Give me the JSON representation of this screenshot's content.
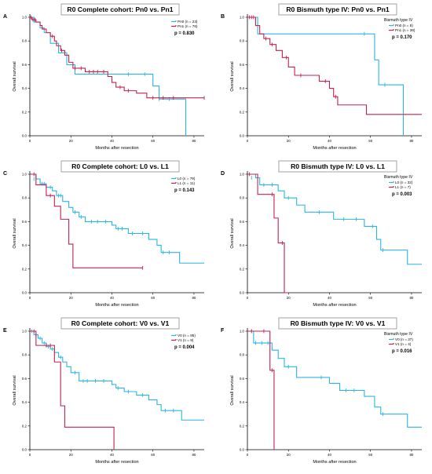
{
  "colors": {
    "group1": "#29b6e6",
    "group2": "#c4214e"
  },
  "chart_data": [
    {
      "letter": "A",
      "type": "line",
      "title": "R0 Complete cohort: Pn0 vs. Pn1",
      "xlabel": "Months after resection",
      "ylabel": "Overall survival",
      "xlim": [
        0,
        85
      ],
      "ylim": [
        0,
        1
      ],
      "xticks": [
        "0",
        "20",
        "40",
        "60",
        "80"
      ],
      "yticks": [
        "0.0",
        "0.2",
        "0.4",
        "0.6",
        "0.8",
        "1.0"
      ],
      "legend_title": "",
      "p_text": "p = 0.830",
      "series": [
        {
          "name": "Pn0 (n = 23)",
          "x": [
            0,
            2,
            5,
            7,
            10,
            14,
            18,
            22,
            40,
            56,
            60,
            63,
            76
          ],
          "y": [
            1.0,
            0.96,
            0.91,
            0.87,
            0.78,
            0.7,
            0.6,
            0.52,
            0.52,
            0.52,
            0.42,
            0.31,
            0.0
          ],
          "censored": [
            [
              48,
              0.52
            ],
            [
              56,
              0.52
            ],
            [
              63,
              0.31
            ],
            [
              68,
              0.31
            ]
          ]
        },
        {
          "name": "Pn1 (n = 76)",
          "x": [
            0,
            1,
            3,
            5,
            6,
            8,
            10,
            12,
            13,
            15,
            17,
            19,
            21,
            27,
            38,
            40,
            42,
            46,
            52,
            57,
            85
          ],
          "y": [
            1.0,
            0.98,
            0.96,
            0.93,
            0.9,
            0.87,
            0.84,
            0.8,
            0.76,
            0.72,
            0.68,
            0.62,
            0.57,
            0.54,
            0.5,
            0.45,
            0.41,
            0.38,
            0.36,
            0.32,
            0.32
          ],
          "censored": [
            [
              0.5,
              1.0
            ],
            [
              1.5,
              0.98
            ],
            [
              2.5,
              0.98
            ],
            [
              11,
              0.84
            ],
            [
              15.5,
              0.72
            ],
            [
              22,
              0.57
            ],
            [
              25,
              0.57
            ],
            [
              29,
              0.54
            ],
            [
              31,
              0.54
            ],
            [
              33,
              0.54
            ],
            [
              36,
              0.54
            ],
            [
              44,
              0.41
            ],
            [
              48,
              0.38
            ],
            [
              60,
              0.32
            ],
            [
              65,
              0.32
            ],
            [
              70,
              0.32
            ],
            [
              85,
              0.32
            ]
          ]
        }
      ]
    },
    {
      "letter": "B",
      "type": "line",
      "title": "R0 Bismuth type IV: Pn0 vs. Pn1",
      "xlabel": "Months after resection",
      "ylabel": "Overall survival",
      "xlim": [
        0,
        85
      ],
      "ylim": [
        0,
        1
      ],
      "xticks": [
        "0",
        "20",
        "40",
        "60",
        "80"
      ],
      "yticks": [
        "0.0",
        "0.2",
        "0.4",
        "0.6",
        "0.8",
        "1.0"
      ],
      "legend_title": "Bismuth type IV",
      "p_text": "p = 0.170",
      "series": [
        {
          "name": "Pn0 (n = 8)",
          "x": [
            0,
            5,
            62,
            64,
            76
          ],
          "y": [
            1.0,
            0.86,
            0.64,
            0.43,
            0.0
          ],
          "censored": [
            [
              57,
              0.86
            ],
            [
              67,
              0.43
            ]
          ]
        },
        {
          "name": "Pn1 (n = 36)",
          "x": [
            0,
            4,
            6,
            8,
            11,
            14,
            17,
            20,
            23,
            35,
            40,
            42,
            44,
            58,
            85
          ],
          "y": [
            1.0,
            0.93,
            0.86,
            0.82,
            0.77,
            0.72,
            0.66,
            0.58,
            0.51,
            0.46,
            0.4,
            0.33,
            0.26,
            0.18,
            0.18
          ],
          "censored": [
            [
              1,
              1.0
            ],
            [
              2,
              1.0
            ],
            [
              3,
              1.0
            ],
            [
              9,
              0.82
            ],
            [
              12,
              0.77
            ],
            [
              19,
              0.66
            ],
            [
              26,
              0.51
            ],
            [
              38,
              0.46
            ],
            [
              43,
              0.33
            ]
          ]
        }
      ]
    },
    {
      "letter": "C",
      "type": "line",
      "title": "R0 Complete cohort: L0 vs. L1",
      "xlabel": "Months after resection",
      "ylabel": "Overall survival",
      "xlim": [
        0,
        85
      ],
      "ylim": [
        0,
        1
      ],
      "xticks": [
        "0",
        "20",
        "40",
        "60",
        "80"
      ],
      "yticks": [
        "0.0",
        "0.2",
        "0.4",
        "0.6",
        "0.8",
        "1.0"
      ],
      "legend_title": "",
      "p_text": "p = 0.143",
      "series": [
        {
          "name": "L0 (n = 79)",
          "x": [
            0,
            3,
            5,
            8,
            11,
            13,
            16,
            19,
            21,
            24,
            27,
            40,
            42,
            48,
            52,
            58,
            62,
            64,
            73,
            85
          ],
          "y": [
            1.0,
            0.96,
            0.92,
            0.89,
            0.86,
            0.82,
            0.77,
            0.72,
            0.68,
            0.64,
            0.6,
            0.57,
            0.54,
            0.5,
            0.5,
            0.45,
            0.4,
            0.34,
            0.25,
            0.25
          ],
          "censored": [
            [
              2,
              0.96
            ],
            [
              6,
              0.92
            ],
            [
              7,
              0.92
            ],
            [
              10,
              0.89
            ],
            [
              14,
              0.82
            ],
            [
              15,
              0.82
            ],
            [
              22,
              0.68
            ],
            [
              25,
              0.64
            ],
            [
              30,
              0.6
            ],
            [
              33,
              0.6
            ],
            [
              37,
              0.6
            ],
            [
              43,
              0.54
            ],
            [
              45,
              0.54
            ],
            [
              50,
              0.5
            ],
            [
              55,
              0.5
            ],
            [
              65,
              0.34
            ],
            [
              68,
              0.34
            ]
          ]
        },
        {
          "name": "L1 (n = 11)",
          "x": [
            0,
            3,
            8,
            12,
            15,
            19,
            21,
            55
          ],
          "y": [
            1.0,
            0.91,
            0.82,
            0.73,
            0.62,
            0.41,
            0.21,
            0.21
          ],
          "censored": [
            [
              2,
              1.0
            ],
            [
              10,
              0.82
            ],
            [
              55,
              0.21
            ]
          ]
        }
      ]
    },
    {
      "letter": "D",
      "type": "line",
      "title": "R0 Bismuth type IV: L0 vs. L1",
      "xlabel": "Months after resection",
      "ylabel": "Overall survival",
      "xlim": [
        0,
        85
      ],
      "ylim": [
        0,
        1
      ],
      "xticks": [
        "0",
        "20",
        "40",
        "60",
        "80"
      ],
      "yticks": [
        "0.0",
        "0.2",
        "0.4",
        "0.6",
        "0.8",
        "1.0"
      ],
      "legend_title": "Bismuth type IV",
      "p_text": "p = 0.003",
      "series": [
        {
          "name": "L0 (n = 32)",
          "x": [
            0,
            4,
            6,
            15,
            18,
            24,
            28,
            42,
            57,
            63,
            65,
            78,
            85
          ],
          "y": [
            1.0,
            0.97,
            0.91,
            0.86,
            0.8,
            0.74,
            0.68,
            0.62,
            0.56,
            0.45,
            0.36,
            0.24,
            0.24
          ],
          "censored": [
            [
              2,
              0.97
            ],
            [
              8,
              0.91
            ],
            [
              12,
              0.91
            ],
            [
              20,
              0.8
            ],
            [
              35,
              0.68
            ],
            [
              47,
              0.62
            ],
            [
              53,
              0.62
            ],
            [
              61,
              0.56
            ],
            [
              66,
              0.36
            ]
          ]
        },
        {
          "name": "L1 (n = 7)",
          "x": [
            0,
            5,
            13,
            15,
            18,
            20
          ],
          "y": [
            1.0,
            0.83,
            0.63,
            0.42,
            0.0,
            0.0
          ],
          "censored": [
            [
              1,
              1.0
            ],
            [
              12,
              0.83
            ],
            [
              17,
              0.42
            ]
          ]
        }
      ]
    },
    {
      "letter": "E",
      "type": "line",
      "title": "R0 Complete cohort: V0 vs. V1",
      "xlabel": "Months after resection",
      "ylabel": "Overall survival",
      "xlim": [
        0,
        85
      ],
      "ylim": [
        0,
        1
      ],
      "xticks": [
        "0",
        "20",
        "40",
        "60",
        "80"
      ],
      "yticks": [
        "0.0",
        "0.2",
        "0.4",
        "0.6",
        "0.8",
        "1.0"
      ],
      "legend_title": "",
      "p_text": "p = 0.004",
      "series": [
        {
          "name": "V0 (n = 85)",
          "x": [
            0,
            2,
            4,
            6,
            8,
            10,
            12,
            14,
            16,
            18,
            20,
            24,
            40,
            42,
            46,
            52,
            58,
            62,
            64,
            74,
            85
          ],
          "y": [
            1.0,
            0.97,
            0.94,
            0.9,
            0.87,
            0.85,
            0.82,
            0.78,
            0.74,
            0.7,
            0.65,
            0.58,
            0.55,
            0.52,
            0.49,
            0.46,
            0.42,
            0.38,
            0.33,
            0.25,
            0.25
          ],
          "censored": [
            [
              1,
              1.0
            ],
            [
              3,
              0.97
            ],
            [
              5,
              0.94
            ],
            [
              7,
              0.9
            ],
            [
              9,
              0.87
            ],
            [
              11,
              0.85
            ],
            [
              15,
              0.78
            ],
            [
              22,
              0.65
            ],
            [
              26,
              0.58
            ],
            [
              28,
              0.58
            ],
            [
              32,
              0.58
            ],
            [
              36,
              0.58
            ],
            [
              43,
              0.52
            ],
            [
              48,
              0.49
            ],
            [
              55,
              0.46
            ],
            [
              66,
              0.33
            ],
            [
              70,
              0.33
            ]
          ]
        },
        {
          "name": "V1 (n = 9)",
          "x": [
            0,
            3,
            12,
            15,
            17,
            41
          ],
          "y": [
            1.0,
            0.88,
            0.74,
            0.37,
            0.19,
            0.0
          ],
          "censored": [
            [
              2,
              1.0
            ],
            [
              8,
              0.88
            ],
            [
              10,
              0.88
            ]
          ]
        }
      ]
    },
    {
      "letter": "F",
      "type": "line",
      "title": "R0 Bismuth type IV: V0 vs. V1",
      "xlabel": "Months after resection",
      "ylabel": "Overall survival",
      "xlim": [
        0,
        85
      ],
      "ylim": [
        0,
        1
      ],
      "xticks": [
        "0",
        "20",
        "40",
        "60",
        "80"
      ],
      "yticks": [
        "0.0",
        "0.2",
        "0.4",
        "0.6",
        "0.8",
        "1.0"
      ],
      "legend_title": "Bismuth type IV",
      "p_text": "p = 0.016",
      "series": [
        {
          "name": "V0 (n = 37)",
          "x": [
            0,
            3,
            12,
            15,
            18,
            24,
            40,
            45,
            57,
            62,
            65,
            78,
            85
          ],
          "y": [
            1.0,
            0.9,
            0.84,
            0.77,
            0.7,
            0.61,
            0.56,
            0.5,
            0.45,
            0.36,
            0.3,
            0.19,
            0.19
          ],
          "censored": [
            [
              2,
              1.0
            ],
            [
              4,
              0.9
            ],
            [
              7,
              0.9
            ],
            [
              10,
              0.9
            ],
            [
              20,
              0.7
            ],
            [
              36,
              0.61
            ],
            [
              48,
              0.5
            ],
            [
              52,
              0.5
            ],
            [
              66,
              0.3
            ]
          ]
        },
        {
          "name": "V1 (n = 4)",
          "x": [
            0,
            11,
            13
          ],
          "y": [
            1.0,
            0.67,
            0.0
          ],
          "censored": [
            [
              2,
              1.0
            ],
            [
              8,
              1.0
            ],
            [
              12,
              0.67
            ]
          ]
        }
      ]
    }
  ]
}
